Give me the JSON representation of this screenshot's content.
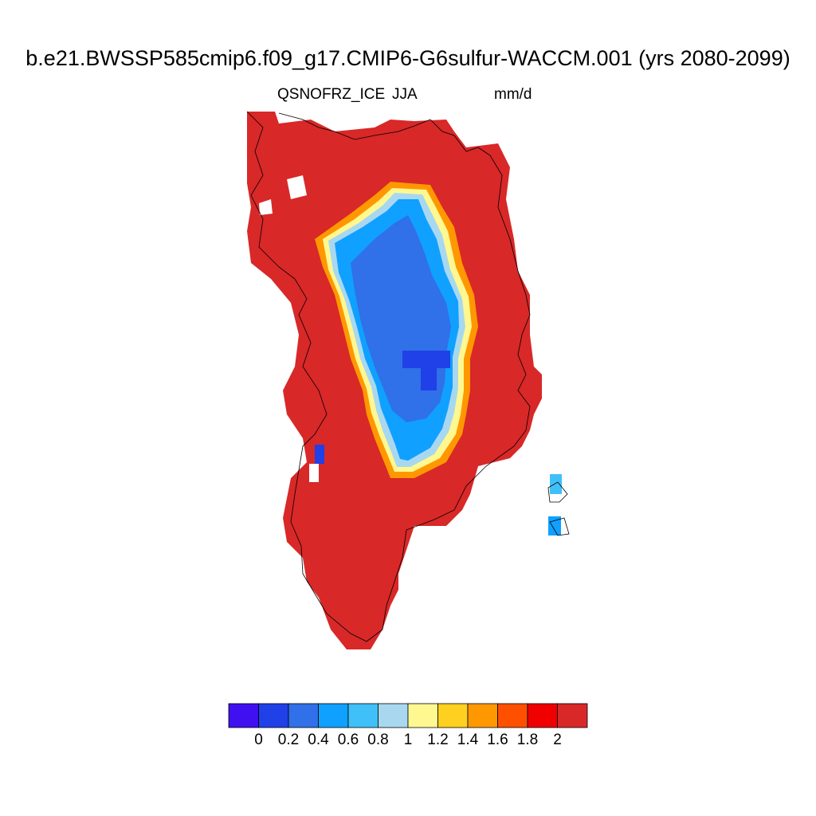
{
  "title": "b.e21.BWSSP585cmip6.f09_g17.CMIP6-G6sulfur-WACCM.001 (yrs 2080-2099)",
  "subtitle_left": "QSNOFRZ_ICE",
  "subtitle_center": "JJA",
  "subtitle_right": "mm/d",
  "colorbar": {
    "colors": [
      "#4010f0",
      "#2040e8",
      "#3070e8",
      "#10a0ff",
      "#40c0f8",
      "#a8d8f0",
      "#fff890",
      "#ffd020",
      "#ff9800",
      "#ff5000",
      "#f00000",
      "#d82828"
    ],
    "tick_labels": [
      "0",
      "0.2",
      "0.4",
      "0.6",
      "0.8",
      "1",
      "1.2",
      "1.4",
      "1.6",
      "1.8",
      "2"
    ]
  }
}
